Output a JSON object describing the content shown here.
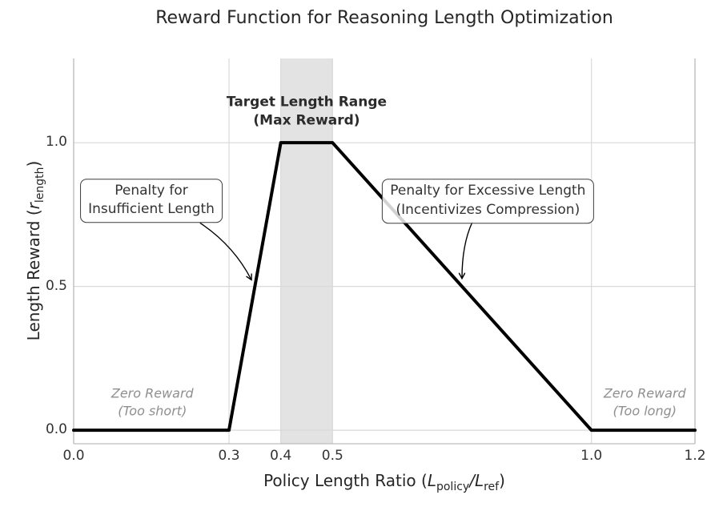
{
  "chart_data": {
    "type": "line",
    "title": "Reward Function for Reasoning Length Optimization",
    "xlabel": "Policy Length Ratio (L_policy/L_ref)",
    "ylabel": "Length Reward (r_length)",
    "xlabel_parts": {
      "text": "Policy Length Ratio (",
      "v1": "L",
      "s1": "policy",
      "op": "/",
      "v2": "L",
      "s2": "ref",
      "close": ")"
    },
    "ylabel_parts": {
      "text": "Length Reward (",
      "v1": "r",
      "s1": "length",
      "close": ")"
    },
    "series": [
      {
        "name": "length_reward",
        "x": [
          0.0,
          0.3,
          0.4,
          0.5,
          1.0,
          1.2
        ],
        "y": [
          0.0,
          0.0,
          1.0,
          1.0,
          0.0,
          0.0
        ],
        "color": "#000000",
        "line_width": 4
      }
    ],
    "xlim": [
      0.0,
      1.2
    ],
    "ylim": [
      -0.047,
      1.293
    ],
    "x_ticks": [
      0.0,
      0.3,
      0.4,
      0.5,
      1.0,
      1.2
    ],
    "x_tick_labels": [
      "0.0",
      "0.3",
      "0.4",
      "0.5",
      "1.0",
      "1.2"
    ],
    "y_ticks": [
      0.0,
      0.5,
      1.0
    ],
    "y_tick_labels": [
      "0.0",
      "0.5",
      "1.0"
    ],
    "grid": true,
    "legend": false,
    "target_band": {
      "x0": 0.4,
      "x1": 0.5,
      "color": "#e3e3e3"
    },
    "annotations": {
      "target": {
        "line1": "Target Length Range",
        "line2": "(Max Reward)",
        "x": 0.45,
        "y": 1.108
      },
      "insufficient": {
        "line1": "Penalty for",
        "line2": "Insufficient Length",
        "x": 0.15,
        "y": 0.798
      },
      "excessive": {
        "line1": "Penalty for Excessive Length",
        "line2": "(Incentivizes Compression)",
        "x": 0.8,
        "y": 0.797
      },
      "zero_short": {
        "line1": "Zero Reward",
        "line2": "(Too short)",
        "x": 0.152,
        "y": 0.098
      },
      "zero_long": {
        "line1": "Zero Reward",
        "line2": "(Too long)",
        "x": 1.103,
        "y": 0.098
      }
    },
    "arrows": [
      {
        "from": [
          0.244,
          0.721
        ],
        "ctrl": [
          0.309,
          0.643
        ],
        "to": [
          0.343,
          0.524
        ]
      },
      {
        "from": [
          0.77,
          0.724
        ],
        "ctrl": [
          0.75,
          0.646
        ],
        "to": [
          0.75,
          0.529
        ]
      }
    ],
    "colors": {
      "grid": "#d9d9d9",
      "spine": "#bdbdbd",
      "line": "#000000",
      "band": "#e3e3e3",
      "text": "#262626",
      "muted": "#8f8f8f"
    }
  }
}
